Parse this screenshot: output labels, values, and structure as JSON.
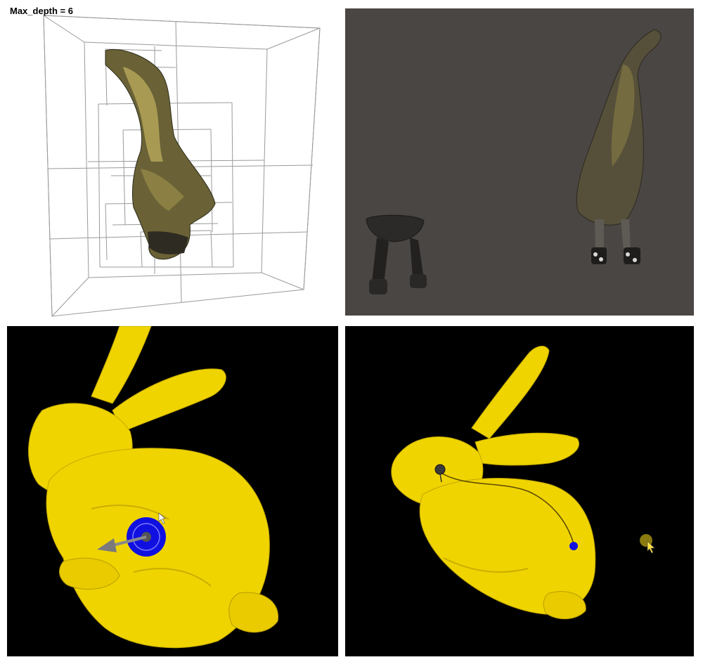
{
  "octree_view": {
    "label": "Max_depth = 6",
    "mesh_icon": "duck-mesh-icon",
    "wire_color": "#a0a0a0"
  },
  "scene_view": {
    "background": "#4a4644",
    "objects": [
      "stool-mesh-icon",
      "duck-mesh-icon"
    ]
  },
  "bunny_view_1": {
    "background": "#000000",
    "mesh_color": "#f0d400",
    "marker_color": "#1010e0",
    "marker_icon": "target-disc-icon",
    "arrow_icon": "direction-arrow-icon"
  },
  "bunny_view_2": {
    "background": "#000000",
    "mesh_color": "#f0d400",
    "marker_color": "#1010e0",
    "cursor_icon": "mouse-pointer-icon"
  }
}
